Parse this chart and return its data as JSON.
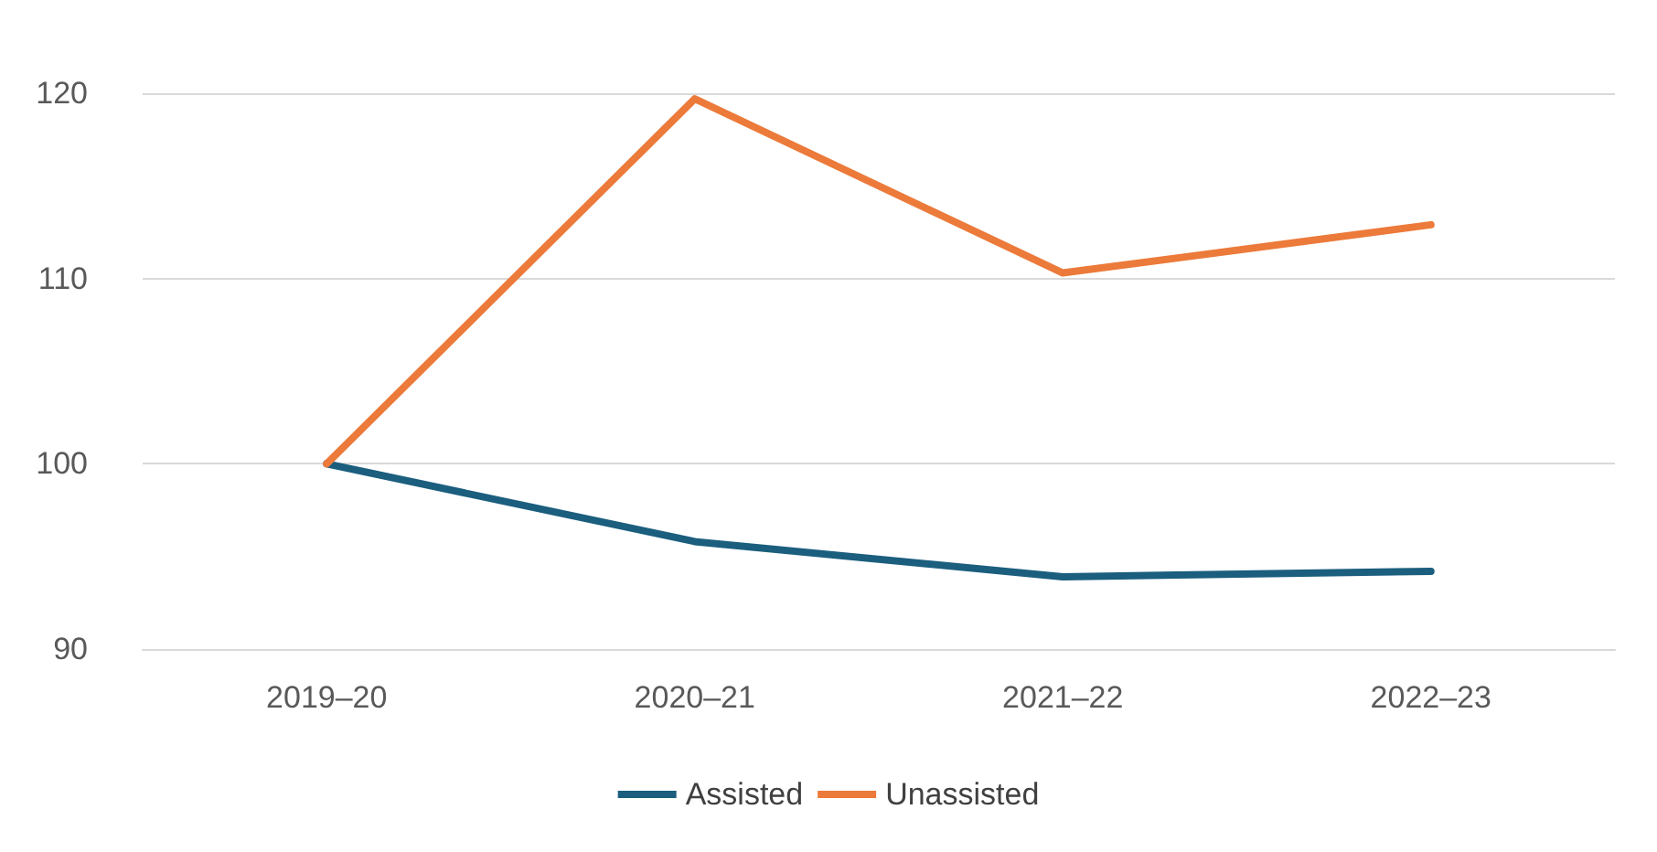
{
  "chart_data": {
    "type": "line",
    "categories": [
      "2019–20",
      "2020–21",
      "2021–22",
      "2022–23"
    ],
    "series": [
      {
        "name": "Assisted",
        "color": "#1b5e7e",
        "values": [
          100,
          95.8,
          93.9,
          94.2
        ]
      },
      {
        "name": "Unassisted",
        "color": "#ec7a3a",
        "values": [
          100,
          119.7,
          110.3,
          112.9
        ]
      }
    ],
    "ylim": [
      90,
      120
    ],
    "yticks": [
      90,
      100,
      110,
      120
    ],
    "grid": "y",
    "legend": "bottom",
    "marker": "none",
    "line_style": "solid"
  }
}
